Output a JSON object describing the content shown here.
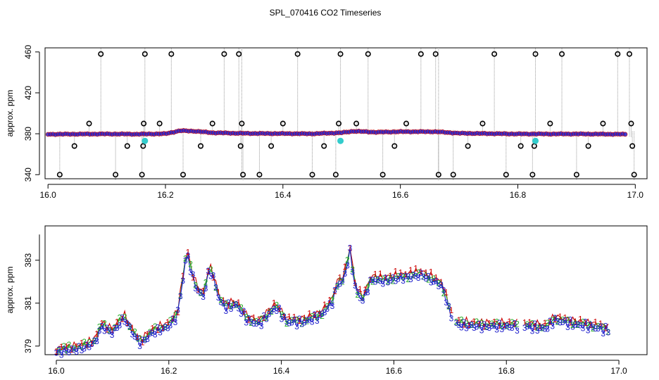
{
  "title": "SPL_070416  CO2 Timeseries",
  "colors": {
    "axis": "#000000",
    "series1": "#cc0000",
    "series2": "#22aa22",
    "series3": "#1f1fcc",
    "scatterFill": "#2222cc",
    "scatterStroke": "#000000",
    "highlight": "#33cccc",
    "vline": "#999999"
  },
  "chart_data": [
    {
      "type": "scatter",
      "title": "",
      "xlabel": "",
      "ylabel": "approx. ppm",
      "xlim": [
        15.995,
        17.02
      ],
      "ylim": [
        336,
        464
      ],
      "xticks": [
        "16.0",
        "16.2",
        "16.4",
        "16.6",
        "16.8",
        "17.0"
      ],
      "yticks": [
        "340",
        "380",
        "420",
        "460"
      ],
      "baseline": [
        [
          16.0,
          379.5
        ],
        [
          16.1,
          379.8
        ],
        [
          16.15,
          379.6
        ],
        [
          16.2,
          380.0
        ],
        [
          16.225,
          383.0
        ],
        [
          16.25,
          382.5
        ],
        [
          16.28,
          381.0
        ],
        [
          16.32,
          380.5
        ],
        [
          16.35,
          380.3
        ],
        [
          16.45,
          380.0
        ],
        [
          16.5,
          381.0
        ],
        [
          16.52,
          382.5
        ],
        [
          16.56,
          381.5
        ],
        [
          16.6,
          382.0
        ],
        [
          16.66,
          382.0
        ],
        [
          16.7,
          380.5
        ],
        [
          16.8,
          379.8
        ],
        [
          16.9,
          379.8
        ],
        [
          16.985,
          379.5
        ]
      ],
      "outliers": [
        [
          16.02,
          340
        ],
        [
          16.045,
          368
        ],
        [
          16.07,
          390
        ],
        [
          16.09,
          458
        ],
        [
          16.115,
          340
        ],
        [
          16.135,
          368
        ],
        [
          16.16,
          340
        ],
        [
          16.162,
          368
        ],
        [
          16.163,
          390
        ],
        [
          16.165,
          458
        ],
        [
          16.19,
          390
        ],
        [
          16.21,
          458
        ],
        [
          16.23,
          340
        ],
        [
          16.26,
          368
        ],
        [
          16.28,
          390
        ],
        [
          16.3,
          458
        ],
        [
          16.325,
          458
        ],
        [
          16.328,
          368
        ],
        [
          16.33,
          390
        ],
        [
          16.332,
          340
        ],
        [
          16.36,
          340
        ],
        [
          16.38,
          368
        ],
        [
          16.4,
          390
        ],
        [
          16.425,
          458
        ],
        [
          16.45,
          340
        ],
        [
          16.47,
          368
        ],
        [
          16.49,
          340
        ],
        [
          16.495,
          390
        ],
        [
          16.498,
          458
        ],
        [
          16.525,
          390
        ],
        [
          16.545,
          458
        ],
        [
          16.57,
          340
        ],
        [
          16.59,
          368
        ],
        [
          16.61,
          390
        ],
        [
          16.635,
          458
        ],
        [
          16.66,
          458
        ],
        [
          16.665,
          340
        ],
        [
          16.69,
          340
        ],
        [
          16.715,
          368
        ],
        [
          16.74,
          390
        ],
        [
          16.76,
          458
        ],
        [
          16.78,
          340
        ],
        [
          16.805,
          368
        ],
        [
          16.825,
          340
        ],
        [
          16.828,
          368
        ],
        [
          16.83,
          458
        ],
        [
          16.855,
          390
        ],
        [
          16.875,
          458
        ],
        [
          16.9,
          340
        ],
        [
          16.92,
          368
        ],
        [
          16.945,
          390
        ],
        [
          16.97,
          458
        ],
        [
          16.99,
          458
        ],
        [
          16.993,
          390
        ],
        [
          16.995,
          368
        ],
        [
          16.998,
          340
        ]
      ],
      "highlights": [
        [
          16.165,
          373
        ],
        [
          16.498,
          373
        ],
        [
          16.83,
          373
        ]
      ]
    },
    {
      "type": "line",
      "title": "",
      "xlabel": "",
      "ylabel": "approx. ppm",
      "xlim": [
        15.98,
        17.05
      ],
      "ylim": [
        378.6,
        384.6
      ],
      "xticks": [
        "16.0",
        "16.2",
        "16.4",
        "16.6",
        "16.8",
        "17.0"
      ],
      "yticks": [
        "379",
        "381",
        "383"
      ],
      "gaps": [
        [
          16.705,
          16.707
        ],
        [
          16.822,
          16.832
        ]
      ],
      "series": [
        {
          "name": "1",
          "offset": 0.2
        },
        {
          "name": "2",
          "offset": 0.1
        },
        {
          "name": "3",
          "offset": 0.0
        }
      ],
      "profile": [
        [
          16.0,
          378.7
        ],
        [
          16.05,
          378.9
        ],
        [
          16.07,
          379.2
        ],
        [
          16.08,
          379.9
        ],
        [
          16.1,
          379.6
        ],
        [
          16.12,
          380.3
        ],
        [
          16.14,
          379.4
        ],
        [
          16.15,
          379.1
        ],
        [
          16.17,
          379.6
        ],
        [
          16.2,
          379.9
        ],
        [
          16.215,
          380.4
        ],
        [
          16.225,
          382.1
        ],
        [
          16.232,
          383.4
        ],
        [
          16.24,
          382.4
        ],
        [
          16.25,
          381.6
        ],
        [
          16.262,
          381.3
        ],
        [
          16.272,
          382.6
        ],
        [
          16.28,
          382.1
        ],
        [
          16.29,
          381.1
        ],
        [
          16.3,
          380.8
        ],
        [
          16.32,
          380.9
        ],
        [
          16.34,
          380.2
        ],
        [
          16.36,
          380.0
        ],
        [
          16.375,
          380.4
        ],
        [
          16.39,
          380.8
        ],
        [
          16.41,
          380.1
        ],
        [
          16.44,
          380.1
        ],
        [
          16.47,
          380.4
        ],
        [
          16.49,
          381.0
        ],
        [
          16.5,
          381.9
        ],
        [
          16.51,
          382.0
        ],
        [
          16.522,
          383.4
        ],
        [
          16.532,
          381.6
        ],
        [
          16.545,
          381.1
        ],
        [
          16.56,
          382.1
        ],
        [
          16.58,
          382.0
        ],
        [
          16.6,
          382.1
        ],
        [
          16.625,
          382.2
        ],
        [
          16.65,
          382.3
        ],
        [
          16.67,
          382.0
        ],
        [
          16.685,
          381.8
        ],
        [
          16.695,
          381.0
        ],
        [
          16.705,
          380.0
        ],
        [
          16.75,
          379.9
        ],
        [
          16.8,
          379.9
        ],
        [
          16.82,
          379.9
        ],
        [
          16.832,
          379.9
        ],
        [
          16.87,
          379.8
        ],
        [
          16.885,
          380.2
        ],
        [
          16.92,
          380.0
        ],
        [
          16.95,
          379.9
        ],
        [
          16.985,
          379.7
        ]
      ]
    }
  ]
}
